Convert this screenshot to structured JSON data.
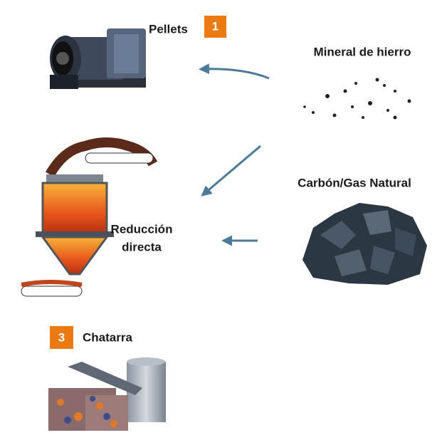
{
  "nodes": [
    {
      "label": "Pellets",
      "badge": "1"
    },
    {
      "label": "Mineral de hierro"
    },
    {
      "label": "Carbón/Gas Natural"
    },
    {
      "label_lines": [
        "Reducción",
        "directa"
      ]
    },
    {
      "label": "Chatarra",
      "badge": "3"
    }
  ]
}
